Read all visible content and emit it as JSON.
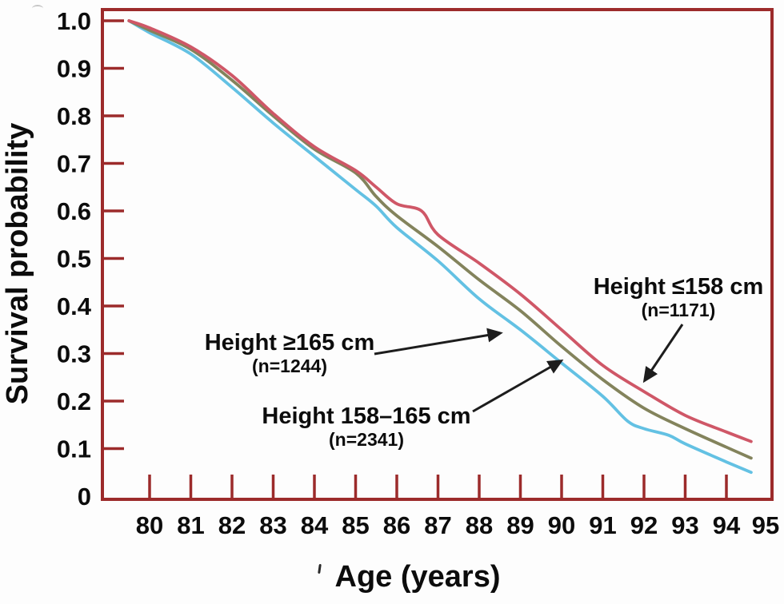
{
  "figure": {
    "background": "#fdfdfd",
    "axis_color": "#9c2b2b",
    "text_color": "#0c0c0c",
    "arrow_color": "#1d1d1d"
  },
  "chart_data": {
    "type": "line",
    "title": "",
    "xlabel": "Age (years)",
    "ylabel": "Survival probability",
    "xlim": [
      79.5,
      95
    ],
    "ylim": [
      0,
      1.0
    ],
    "grid": false,
    "legend_position": "inline-annotations-with-arrows",
    "x_tick_values": [
      80,
      81,
      82,
      83,
      84,
      85,
      86,
      87,
      88,
      89,
      90,
      91,
      92,
      93,
      94,
      95
    ],
    "x_tick_labels": [
      "80",
      "81",
      "82",
      "83",
      "84",
      "85",
      "86",
      "87",
      "88",
      "89",
      "90",
      "91",
      "92",
      "93",
      "94",
      "95"
    ],
    "y_tick_values": [
      1.0,
      0.9,
      0.8,
      0.7,
      0.6,
      0.5,
      0.4,
      0.3,
      0.2,
      0.1,
      0
    ],
    "y_tick_labels": [
      "1.0",
      "0.9",
      "0.8",
      "0.7",
      "0.6",
      "0.5",
      "0.4",
      "0.3",
      "0.2",
      "0.1",
      "0"
    ],
    "series": [
      {
        "name": "Height ≥165 cm",
        "n_label": "(n=1244)",
        "color": "#63c1e3",
        "points": [
          [
            79.5,
            1.0
          ],
          [
            80,
            0.975
          ],
          [
            81,
            0.93
          ],
          [
            82,
            0.86
          ],
          [
            83,
            0.785
          ],
          [
            84,
            0.715
          ],
          [
            85,
            0.645
          ],
          [
            85.5,
            0.61
          ],
          [
            86,
            0.565
          ],
          [
            87,
            0.495
          ],
          [
            88,
            0.415
          ],
          [
            89,
            0.35
          ],
          [
            90,
            0.28
          ],
          [
            91,
            0.21
          ],
          [
            91.6,
            0.158
          ],
          [
            92,
            0.142
          ],
          [
            92.6,
            0.128
          ],
          [
            93,
            0.11
          ],
          [
            94,
            0.072
          ],
          [
            94.6,
            0.05
          ]
        ]
      },
      {
        "name": "Height 158–165 cm",
        "n_label": "(n=2341)",
        "color": "#83835c",
        "points": [
          [
            79.5,
            1.0
          ],
          [
            80,
            0.98
          ],
          [
            81,
            0.94
          ],
          [
            82,
            0.875
          ],
          [
            83,
            0.8
          ],
          [
            84,
            0.73
          ],
          [
            85,
            0.68
          ],
          [
            85.5,
            0.63
          ],
          [
            86,
            0.59
          ],
          [
            87,
            0.525
          ],
          [
            88,
            0.455
          ],
          [
            89,
            0.39
          ],
          [
            90,
            0.315
          ],
          [
            91,
            0.245
          ],
          [
            92,
            0.185
          ],
          [
            93,
            0.142
          ],
          [
            94,
            0.103
          ],
          [
            94.6,
            0.08
          ]
        ]
      },
      {
        "name": "Height ≤158 cm",
        "n_label": "(n=1171)",
        "color": "#cf5767",
        "points": [
          [
            79.5,
            1.0
          ],
          [
            80,
            0.985
          ],
          [
            81,
            0.945
          ],
          [
            82,
            0.885
          ],
          [
            83,
            0.805
          ],
          [
            84,
            0.735
          ],
          [
            85,
            0.685
          ],
          [
            85.5,
            0.65
          ],
          [
            86,
            0.615
          ],
          [
            86.6,
            0.6
          ],
          [
            87,
            0.55
          ],
          [
            88,
            0.49
          ],
          [
            89,
            0.425
          ],
          [
            90,
            0.35
          ],
          [
            91,
            0.275
          ],
          [
            92,
            0.22
          ],
          [
            93,
            0.17
          ],
          [
            94,
            0.135
          ],
          [
            94.6,
            0.115
          ]
        ]
      }
    ]
  },
  "annotations": [
    {
      "label": "Height ≤158 cm",
      "sub": "(n=1171)"
    },
    {
      "label": "Height ≥165 cm",
      "sub": "(n=1244)"
    },
    {
      "label": "Height 158–165 cm",
      "sub": "(n=2341)"
    }
  ]
}
